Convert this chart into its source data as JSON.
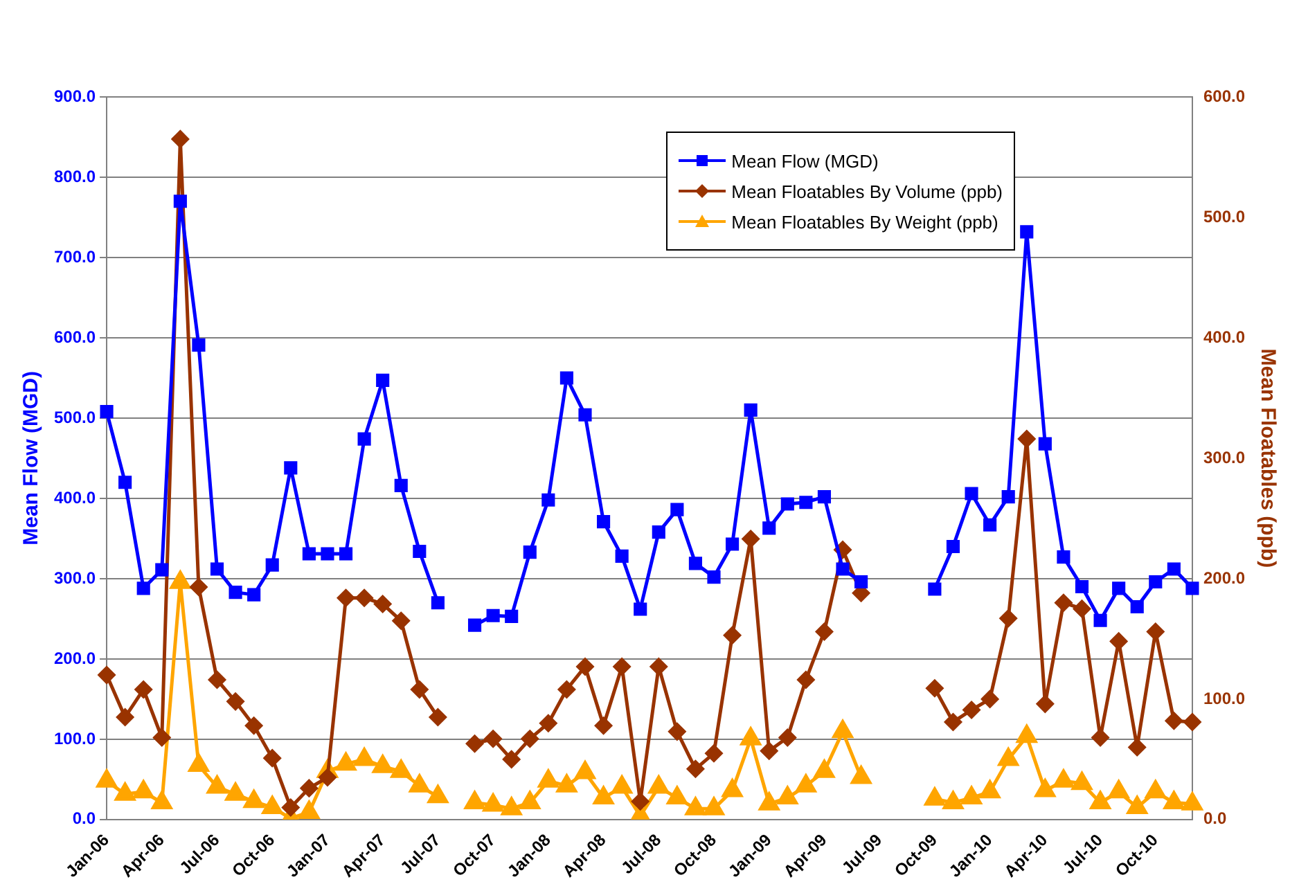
{
  "chart_data": {
    "type": "line",
    "ylabel": "Mean Flow (MGD)",
    "y2label": "Mean Floatables (ppb)",
    "categories": [
      "Jan-06",
      null,
      null,
      "Apr-06",
      null,
      null,
      "Jul-06",
      null,
      null,
      "Oct-06",
      null,
      null,
      "Jan-07",
      null,
      null,
      "Apr-07",
      null,
      null,
      "Jul-07",
      null,
      null,
      "Oct-07",
      null,
      null,
      "Jan-08",
      null,
      null,
      "Apr-08",
      null,
      null,
      "Jul-08",
      null,
      null,
      "Oct-08",
      null,
      null,
      "Jan-09",
      null,
      null,
      "Apr-09",
      null,
      null,
      "Jul-09",
      null,
      null,
      "Oct-09",
      null,
      null,
      "Jan-10",
      null,
      null,
      "Apr-10",
      null,
      null,
      "Jul-10",
      null,
      null,
      "Oct-10",
      null,
      null
    ],
    "series": [
      {
        "name": "Mean Flow (MGD)",
        "color": "#0000ff",
        "marker": "square",
        "values": [
          508,
          420,
          288,
          311,
          770,
          591,
          312,
          283,
          280,
          317,
          438,
          331,
          331,
          331,
          474,
          547,
          416,
          334,
          270,
          null,
          242,
          254,
          253,
          333,
          398,
          550,
          504,
          371,
          328,
          262,
          358,
          386,
          319,
          302,
          343,
          510,
          363,
          393,
          395,
          402,
          312,
          296,
          null,
          null,
          null,
          287,
          340,
          406,
          367,
          402,
          732,
          468,
          327,
          290,
          248,
          288,
          265,
          296,
          312,
          288
        ]
      },
      {
        "name": "Mean Floatables By Volume (ppb)",
        "color": "#993300",
        "marker": "diamond",
        "axis": "y2",
        "values": [
          120,
          85,
          108,
          68,
          565,
          193,
          116,
          98,
          78,
          51,
          10,
          26,
          35,
          184,
          184,
          179,
          165,
          108,
          85,
          null,
          63,
          67,
          50,
          67,
          80,
          108,
          127,
          78,
          127,
          15,
          127,
          73,
          42,
          55,
          153,
          233,
          57,
          68,
          116,
          156,
          224,
          188,
          null,
          null,
          null,
          109,
          81,
          91,
          100,
          167,
          316,
          96,
          180,
          175,
          68,
          148,
          60,
          156,
          82,
          81
        ]
      },
      {
        "name": "Mean Floatables By Weight (ppb)",
        "color": "#ffa500",
        "marker": "triangle",
        "axis": "y2",
        "values": [
          32,
          21,
          23,
          14,
          197,
          45,
          27,
          21,
          15,
          10,
          1,
          6,
          40,
          46,
          50,
          44,
          40,
          28,
          19,
          null,
          14,
          12,
          9,
          14,
          32,
          28,
          39,
          18,
          27,
          3,
          27,
          18,
          9,
          9,
          24,
          67,
          13,
          18,
          28,
          40,
          73,
          35,
          null,
          null,
          null,
          17,
          14,
          18,
          23,
          50,
          69,
          24,
          32,
          30,
          14,
          23,
          10,
          23,
          14,
          13
        ]
      }
    ],
    "ylim": [
      0,
      900
    ],
    "yticks": [
      {
        "value": 0,
        "label": "0.0"
      },
      {
        "value": 100,
        "label": "100.0"
      },
      {
        "value": 200,
        "label": "200.0"
      },
      {
        "value": 300,
        "label": "300.0"
      },
      {
        "value": 400,
        "label": "400.0"
      },
      {
        "value": 500,
        "label": "500.0"
      },
      {
        "value": 600,
        "label": "600.0"
      },
      {
        "value": 700,
        "label": "700.0"
      },
      {
        "value": 800,
        "label": "800.0"
      },
      {
        "value": 900,
        "label": "900.0"
      }
    ],
    "y2lim": [
      0,
      600
    ],
    "y2ticks": [
      {
        "value": 0,
        "label": "0.0"
      },
      {
        "value": 100,
        "label": "100.0"
      },
      {
        "value": 200,
        "label": "200.0"
      },
      {
        "value": 300,
        "label": "300.0"
      },
      {
        "value": 400,
        "label": "400.0"
      },
      {
        "value": 500,
        "label": "500.0"
      },
      {
        "value": 600,
        "label": "600.0"
      }
    ],
    "grid": "y",
    "legend": "top right",
    "line_style": "solid"
  }
}
